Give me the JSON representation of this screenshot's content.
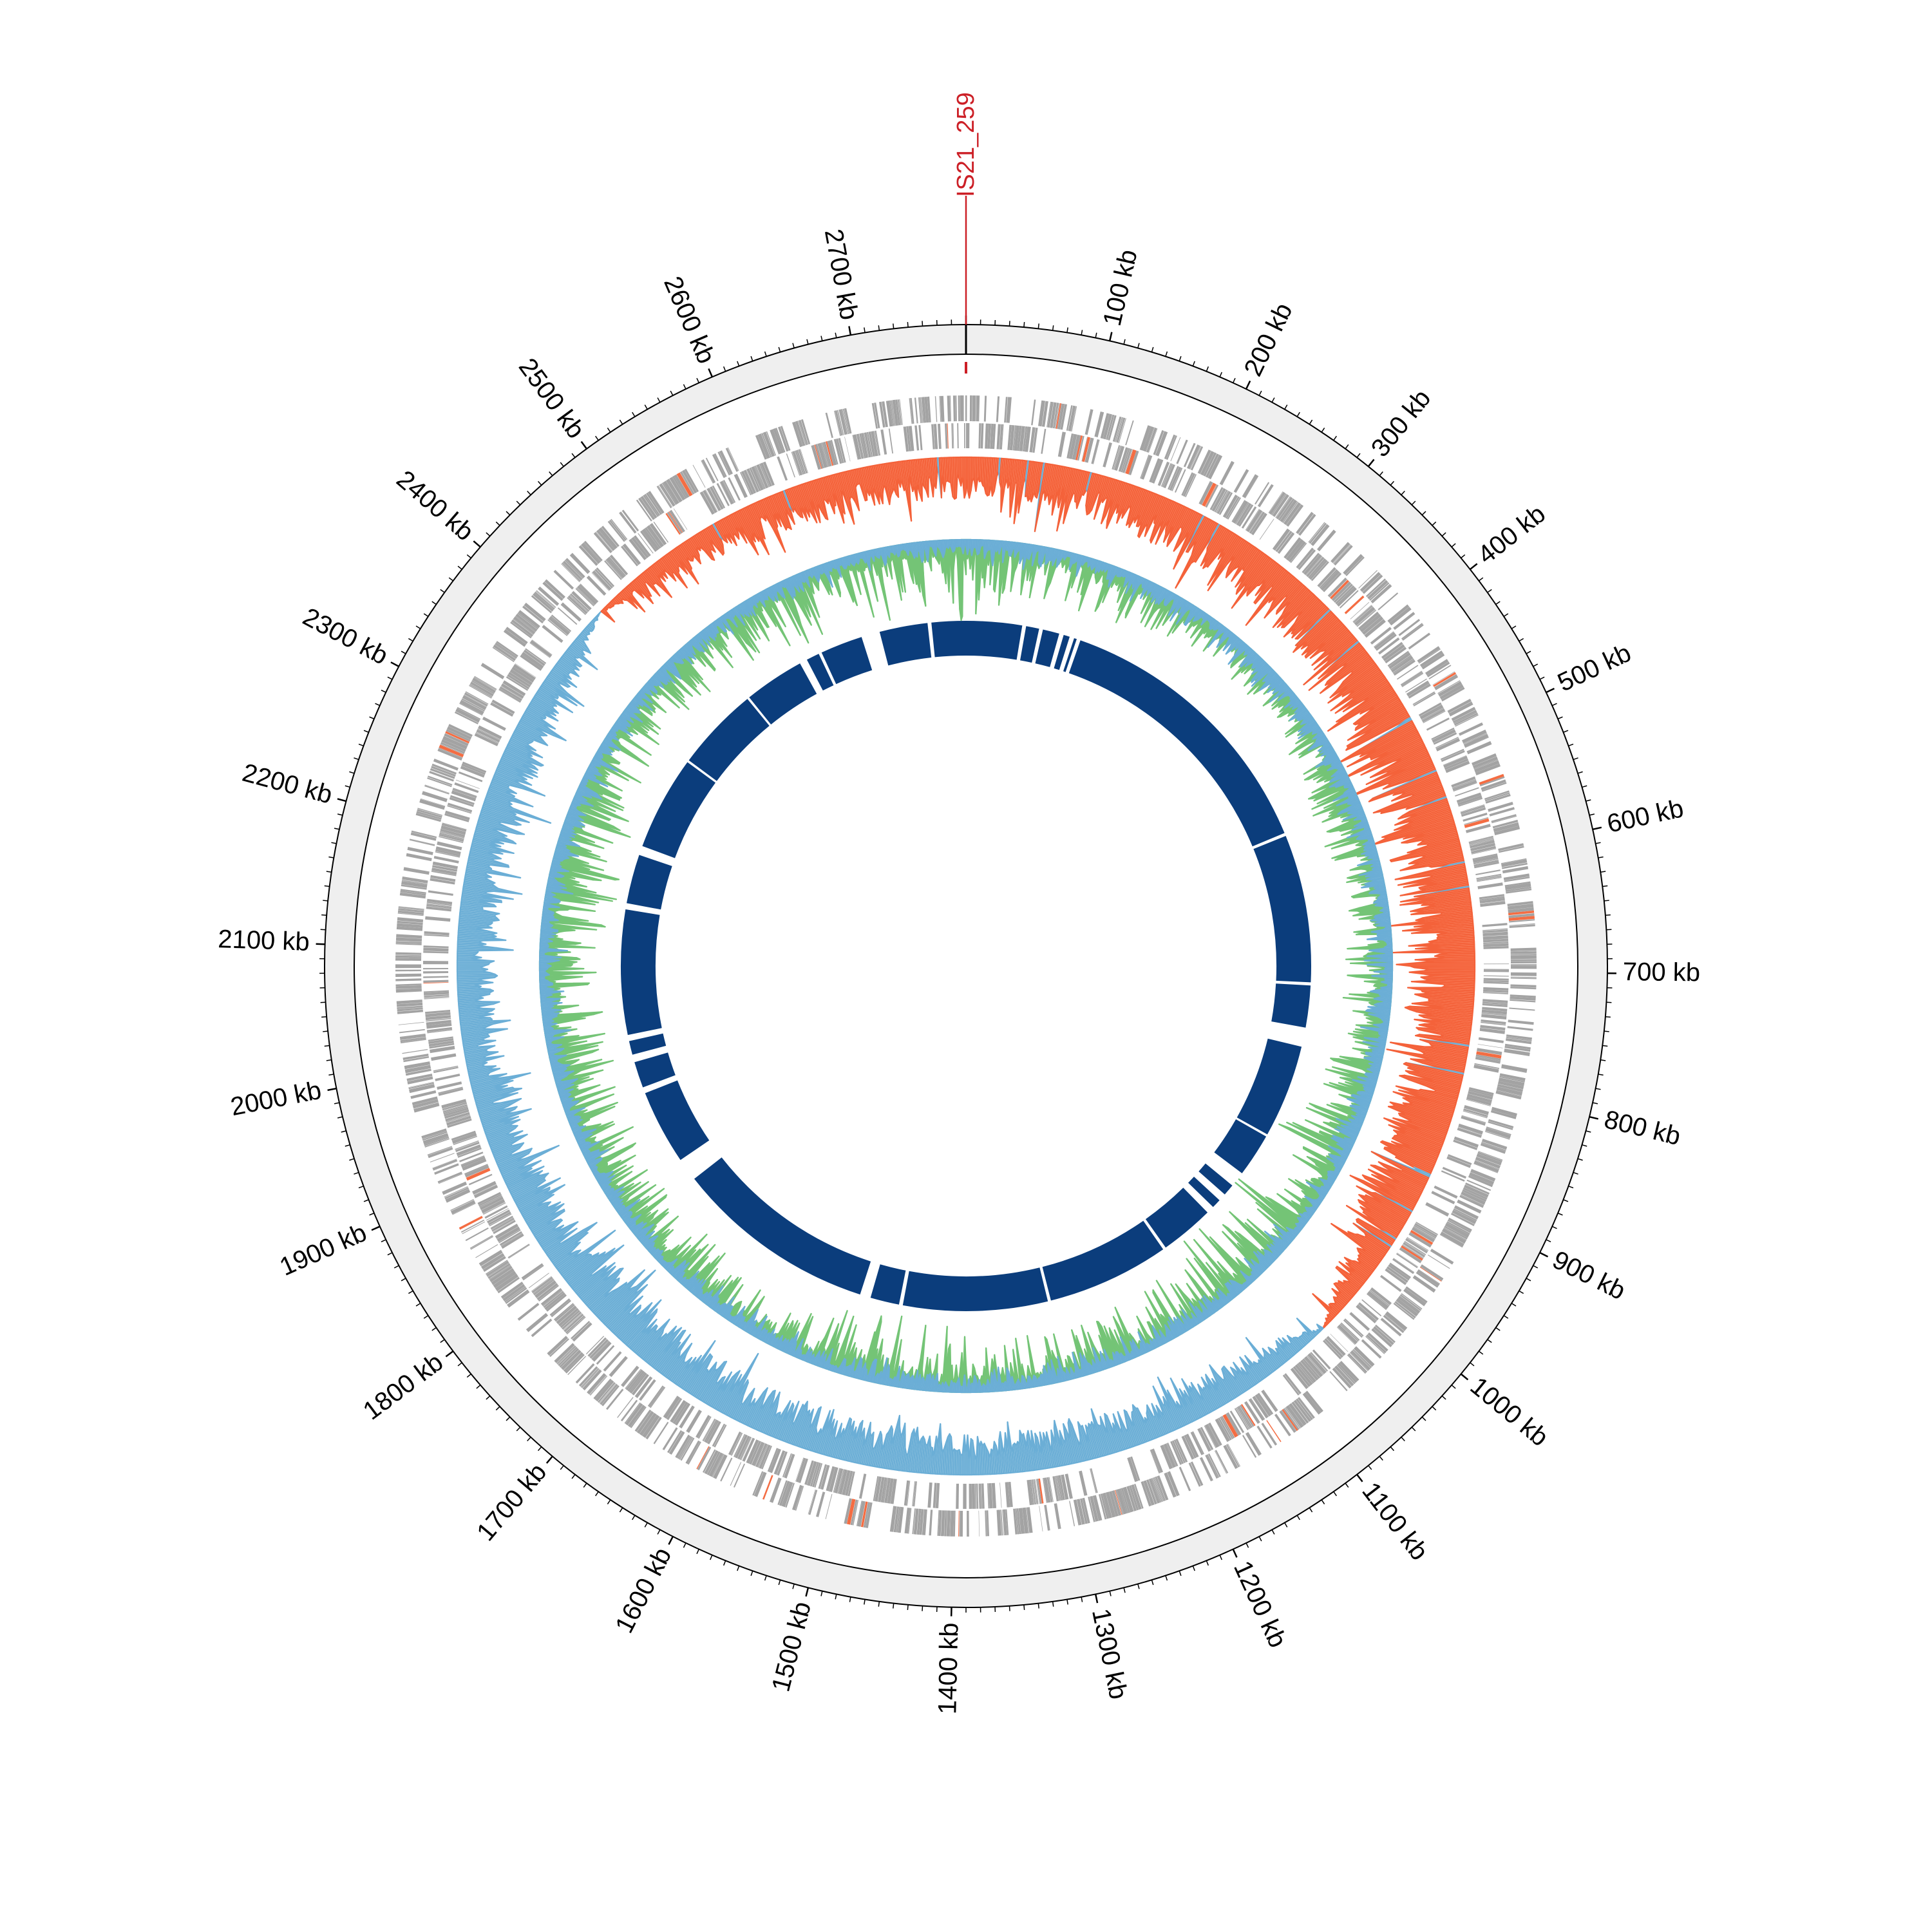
{
  "chart_data": {
    "type": "circular-genome",
    "genome_length_kb": 2780,
    "tick_major_kb": 100,
    "tick_minor_kb": 10,
    "tick_labels": [
      "100 kb",
      "200 kb",
      "300 kb",
      "400 kb",
      "500 kb",
      "600 kb",
      "700 kb",
      "800 kb",
      "900 kb",
      "1000 kb",
      "1100 kb",
      "1200 kb",
      "1300 kb",
      "1400 kb",
      "1500 kb",
      "1600 kb",
      "1700 kb",
      "1800 kb",
      "1900 kb",
      "2000 kb",
      "2100 kb",
      "2200 kb",
      "2300 kb",
      "2400 kb",
      "2500 kb",
      "2600 kb",
      "2700 kb"
    ],
    "annotation": {
      "label": "IS21_259",
      "position_kb": 0,
      "color": "#cc1f26"
    },
    "gc_content_profile_per_10deg": [
      -0.5,
      -0.5,
      -0.55,
      -0.6,
      -0.6,
      -0.7,
      -0.85,
      -0.9,
      -0.9,
      -0.85,
      -0.7,
      -0.8,
      -0.7,
      -0.35,
      0.3,
      0.45,
      0.5,
      0.5,
      0.5,
      0.55,
      0.55,
      0.55,
      0.6,
      0.6,
      0.5,
      0.5,
      0.45,
      0.45,
      0.5,
      0.55,
      0.45,
      0.2,
      -0.3,
      -0.4,
      -0.5,
      -0.5
    ],
    "gc_skew_green_intensity_per_10deg": [
      0.9,
      0.6,
      0.5,
      0.4,
      0.3,
      0.3,
      0.4,
      0.5,
      0.4,
      0.5,
      0.5,
      0.6,
      0.9,
      0.9,
      0.8,
      0.6,
      0.5,
      0.5,
      0.5,
      0.9,
      0.6,
      0.4,
      0.5,
      0.5,
      0.5,
      0.6,
      0.6,
      0.6,
      0.8,
      0.7,
      0.5,
      0.5,
      0.5,
      0.6,
      0.8,
      0.9
    ],
    "contig_gaps_kb": [
      [
        75,
        5
      ],
      [
        97,
        5
      ],
      [
        124,
        6
      ],
      [
        138,
        6
      ],
      [
        147,
        5
      ],
      [
        522,
        4
      ],
      [
        718,
        4
      ],
      [
        787,
        25
      ],
      [
        922,
        3
      ],
      [
        990,
        20
      ],
      [
        1020,
        10
      ],
      [
        1042,
        10
      ],
      [
        1119,
        4
      ],
      [
        1282,
        4
      ],
      [
        1474,
        5
      ],
      [
        1521,
        14
      ],
      [
        1806,
        30
      ],
      [
        1922,
        8
      ],
      [
        1965,
        10
      ],
      [
        1992,
        8
      ],
      [
        2162,
        8
      ],
      [
        2236,
        12
      ],
      [
        2366,
        3
      ],
      [
        2478,
        3
      ],
      [
        2563,
        10
      ],
      [
        2587,
        4
      ],
      [
        2656,
        24
      ],
      [
        2733,
        5
      ]
    ],
    "colors": {
      "ring": "#efefef",
      "cds": "#a3a3a3",
      "cds_highlight": "#f46d43",
      "gc_neg_fill": "#fc9272",
      "gc_neg_line": "#f4623a",
      "pos_fill": "#9ecae1",
      "pos_line": "#6baed6",
      "skew_fill": "#a1d99b",
      "skew_line": "#74c476",
      "contig": "#0b3d7c"
    }
  }
}
